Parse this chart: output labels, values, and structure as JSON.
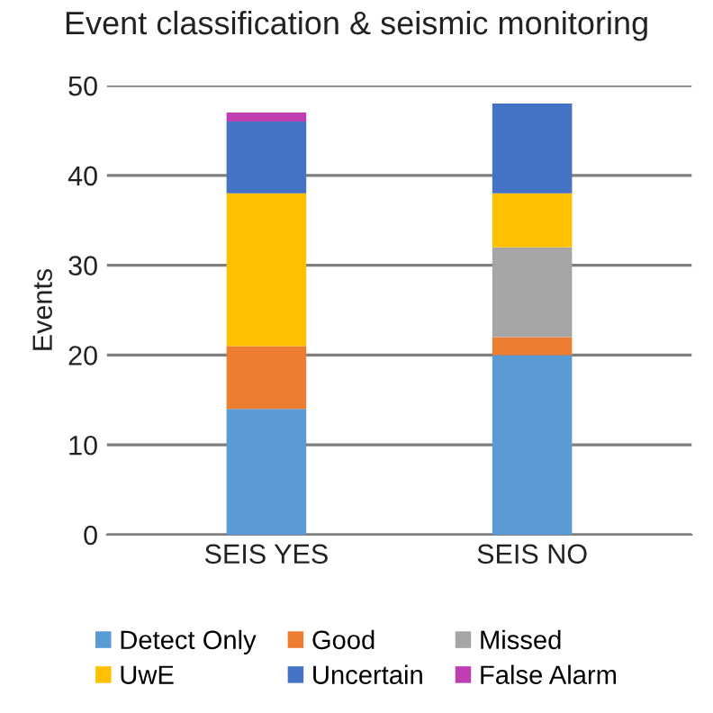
{
  "chart_data": {
    "type": "bar",
    "title": "Event classification & seismic monitoring",
    "ylabel": "Events",
    "categories": [
      "SEIS YES",
      "SEIS NO"
    ],
    "stacked": true,
    "series": [
      {
        "name": "Detect Only",
        "color": "#5b9bd5",
        "values": [
          14,
          20
        ]
      },
      {
        "name": "Good",
        "color": "#ed7d31",
        "values": [
          7,
          2
        ]
      },
      {
        "name": "Missed",
        "color": "#a5a5a5",
        "values": [
          0,
          10
        ]
      },
      {
        "name": "UwE",
        "color": "#ffc000",
        "values": [
          17,
          6
        ]
      },
      {
        "name": "Uncertain",
        "color": "#4472c4",
        "values": [
          8,
          10
        ]
      },
      {
        "name": "False Alarm",
        "color": "#c03fb0",
        "values": [
          1,
          0
        ]
      }
    ],
    "ylim": [
      0,
      50
    ],
    "yticks": [
      0,
      10,
      20,
      30,
      40,
      50
    ],
    "grid": "y",
    "legend": "bottom"
  }
}
